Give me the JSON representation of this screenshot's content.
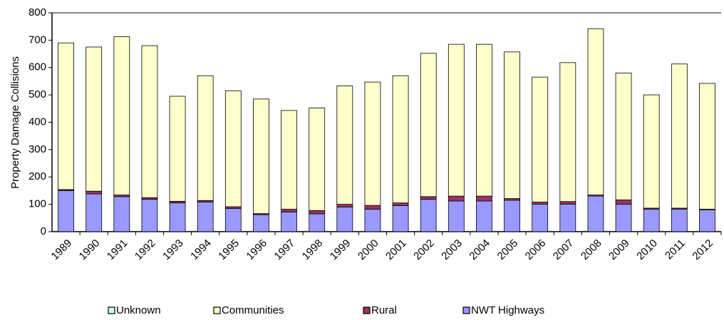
{
  "chart_data": {
    "type": "stacked-bar",
    "y_label": "Property Damage Collisions",
    "categories": [
      "1989",
      "1990",
      "1991",
      "1992",
      "1993",
      "1994",
      "1995",
      "1996",
      "1997",
      "1998",
      "1999",
      "2000",
      "2001",
      "2002",
      "2003",
      "2004",
      "2005",
      "2006",
      "2007",
      "2008",
      "2009",
      "2010",
      "2011",
      "2012"
    ],
    "series": [
      {
        "name": "NWT Highways",
        "color": "#9999ff",
        "values": [
          150,
          138,
          128,
          118,
          105,
          108,
          85,
          62,
          72,
          65,
          90,
          82,
          95,
          118,
          112,
          112,
          115,
          100,
          100,
          130,
          100,
          82,
          82,
          80
        ]
      },
      {
        "name": "Rural",
        "color": "#993366",
        "values": [
          4,
          10,
          6,
          6,
          6,
          6,
          6,
          4,
          10,
          12,
          10,
          14,
          10,
          10,
          18,
          18,
          6,
          8,
          10,
          4,
          16,
          4,
          4,
          2
        ]
      },
      {
        "name": "Communities",
        "color": "#ffffcc",
        "values": [
          536,
          527,
          579,
          556,
          384,
          456,
          424,
          419,
          361,
          375,
          433,
          451,
          465,
          524,
          555,
          555,
          536,
          457,
          508,
          608,
          464,
          414,
          527,
          460
        ]
      },
      {
        "name": "Unknown",
        "color": "#ccffff",
        "values": [
          0,
          0,
          0,
          0,
          0,
          0,
          0,
          0,
          0,
          0,
          0,
          0,
          0,
          0,
          0,
          0,
          0,
          0,
          0,
          0,
          0,
          0,
          0,
          0
        ]
      }
    ],
    "ylim": [
      0,
      800
    ],
    "yticks": [
      0,
      100,
      200,
      300,
      400,
      500,
      600,
      700,
      800
    ],
    "legend_position": "bottom"
  }
}
